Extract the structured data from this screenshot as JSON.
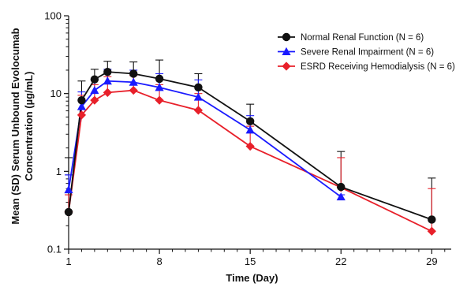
{
  "chart_data": {
    "type": "line",
    "title": "",
    "xlabel": "Time (Day)",
    "ylabel_lines": [
      "Mean (SD) Serum Unbound Evolocumab",
      "Concentration (µg/mL)"
    ],
    "y_scale": "log",
    "ylim": [
      0.1,
      100
    ],
    "xlim": [
      1,
      30.5
    ],
    "x_ticks": [
      1,
      8,
      15,
      22,
      29
    ],
    "y_ticks": [
      0.1,
      1,
      10,
      100
    ],
    "y_tick_labels": [
      "0.1",
      "1",
      "10",
      "100"
    ],
    "legend_position": "top-right",
    "grid": false,
    "series": [
      {
        "name": "Normal Renal Function (N = 6)",
        "color": "#111111",
        "marker": "circle",
        "x": [
          1,
          2,
          3,
          4,
          6,
          8,
          11,
          15,
          22,
          29
        ],
        "y": [
          0.3,
          8.2,
          15.2,
          19.0,
          18.0,
          15.5,
          12.0,
          4.4,
          0.63,
          0.24
        ],
        "sd_upper": [
          1.5,
          14.5,
          20.5,
          26.0,
          25.5,
          27.0,
          18.0,
          7.3,
          1.8,
          0.82
        ]
      },
      {
        "name": "Severe Renal Impairment (N = 6)",
        "color": "#1a1aff",
        "marker": "triangle",
        "x": [
          1,
          2,
          3,
          4,
          6,
          8,
          11,
          15,
          22
        ],
        "y": [
          0.58,
          6.8,
          11.0,
          14.5,
          14.0,
          12.0,
          9.0,
          3.4,
          0.47
        ],
        "sd_upper": [
          0.9,
          10.5,
          15.5,
          20.5,
          20.0,
          18.0,
          15.0,
          5.2,
          0.5
        ]
      },
      {
        "name": "ESRD Receiving Hemodialysis (N = 6)",
        "color": "#e8202a",
        "marker": "diamond",
        "x": [
          1,
          2,
          3,
          4,
          6,
          8,
          11,
          15,
          22,
          29
        ],
        "y": [
          0.3,
          5.3,
          8.2,
          10.3,
          11.0,
          8.2,
          6.1,
          2.1,
          0.62,
          0.17
        ],
        "sd_upper": [
          0.5,
          9.5,
          13.0,
          16.5,
          17.0,
          13.0,
          10.0,
          3.8,
          1.5,
          0.6
        ]
      }
    ]
  }
}
